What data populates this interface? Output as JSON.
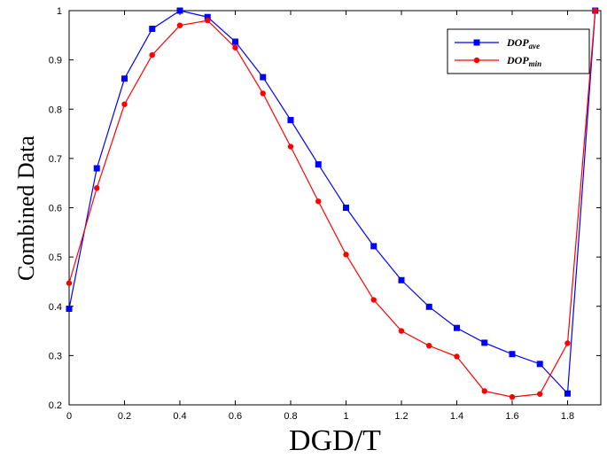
{
  "chart_data": {
    "type": "line",
    "xlabel": "DGD/T",
    "ylabel": "Combined Data",
    "xlim": [
      0,
      1.92
    ],
    "ylim": [
      0.2,
      1.0
    ],
    "x_ticks": [
      "0",
      "0.2",
      "0.4",
      "0.6",
      "0.8",
      "1",
      "1.2",
      "1.4",
      "1.6",
      "1.8"
    ],
    "y_ticks": [
      "0.2",
      "0.3",
      "0.4",
      "0.5",
      "0.6",
      "0.7",
      "0.8",
      "0.9",
      "1"
    ],
    "grid": false,
    "legend_position": "top-right",
    "x": [
      0,
      0.1,
      0.2,
      0.3,
      0.4,
      0.5,
      0.6,
      0.7,
      0.8,
      0.9,
      1.0,
      1.1,
      1.2,
      1.3,
      1.4,
      1.5,
      1.6,
      1.7,
      1.8,
      1.9
    ],
    "series": [
      {
        "name": "DOP",
        "subscript": "ave",
        "color": "#0000ff",
        "marker": "square",
        "values": [
          0.395,
          0.68,
          0.862,
          0.963,
          1.0,
          0.987,
          0.937,
          0.865,
          0.778,
          0.688,
          0.6,
          0.522,
          0.453,
          0.399,
          0.356,
          0.326,
          0.303,
          0.283,
          0.223,
          1.0
        ]
      },
      {
        "name": "DOP",
        "subscript": "min",
        "color": "#ff0000",
        "marker": "circle",
        "values": [
          0.447,
          0.64,
          0.81,
          0.91,
          0.97,
          0.98,
          0.925,
          0.832,
          0.724,
          0.613,
          0.505,
          0.413,
          0.35,
          0.32,
          0.298,
          0.228,
          0.216,
          0.222,
          0.325,
          1.0
        ]
      }
    ]
  }
}
